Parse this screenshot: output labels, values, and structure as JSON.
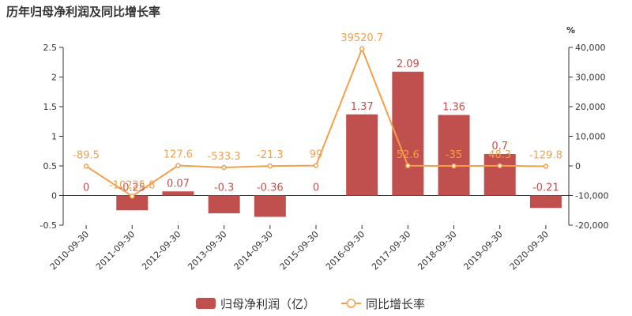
{
  "title": "历年归母净利润及同比增长率",
  "colors": {
    "bar": "#c0504d",
    "line": "#f4a04a",
    "axis": "#333333"
  },
  "chart_data": {
    "type": "bar",
    "categories": [
      "2010-09-30",
      "2011-09-30",
      "2012-09-30",
      "2013-09-30",
      "2014-09-30",
      "2015-09-30",
      "2016-09-30",
      "2017-09-30",
      "2018-09-30",
      "2019-09-30",
      "2020-09-30"
    ],
    "series": [
      {
        "name": "归母净利润（亿）",
        "type": "bar",
        "axis": "left",
        "values": [
          0,
          -0.25,
          0.07,
          -0.3,
          -0.36,
          0,
          1.37,
          2.09,
          1.36,
          0.7,
          -0.21
        ],
        "labels": [
          "0",
          "-0.25",
          "0.07",
          "-0.3",
          "-0.36",
          "0",
          "1.37",
          "2.09",
          "1.36",
          "0.7",
          "-0.21"
        ]
      },
      {
        "name": "同比增长率",
        "type": "line",
        "axis": "right",
        "values": [
          -89.5,
          -10225.8,
          127.6,
          -533.3,
          -21.3,
          99,
          39520.7,
          52.6,
          -35,
          48.3,
          -129.8
        ],
        "labels": [
          "-89.5",
          "-10225.8",
          "127.6",
          "-533.3",
          "-21.3",
          "99",
          "39520.7",
          "52.6",
          "-35",
          "48.3",
          "-129.8"
        ]
      }
    ],
    "y_left": {
      "ylim": [
        -0.5,
        2.5
      ],
      "ticks": [
        "-0.5",
        "0",
        "0.5",
        "1",
        "1.5",
        "2",
        "2.5"
      ]
    },
    "y_right": {
      "ylim": [
        -20000,
        40000
      ],
      "unit": "%",
      "ticks": [
        "-20,000",
        "-10,000",
        "0",
        "10,000",
        "20,000",
        "30,000",
        "40,000"
      ]
    },
    "grid": false,
    "legend": "bottom"
  }
}
